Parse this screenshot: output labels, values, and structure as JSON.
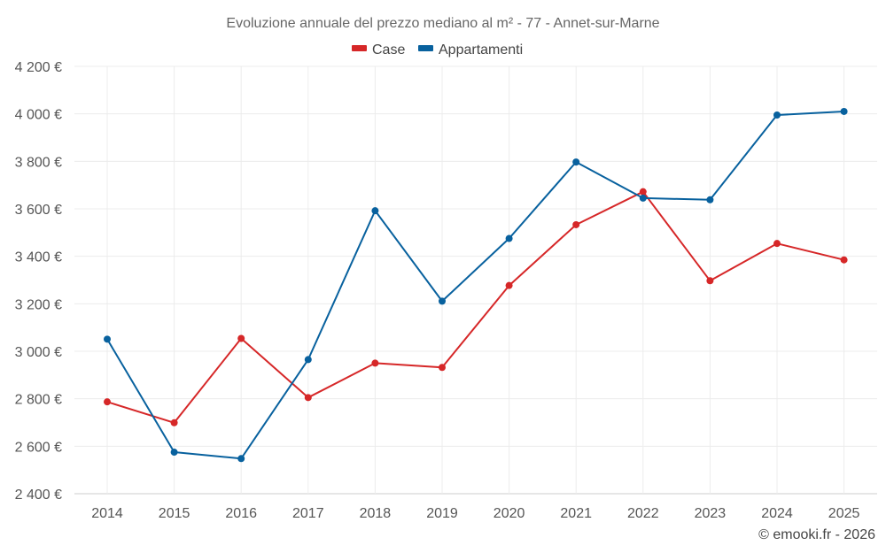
{
  "chart_data": {
    "type": "line",
    "title": "Evoluzione annuale del prezzo mediano al m² - 77 - Annet-sur-Marne",
    "categories": [
      "2014",
      "2015",
      "2016",
      "2017",
      "2018",
      "2019",
      "2020",
      "2021",
      "2022",
      "2023",
      "2024",
      "2025"
    ],
    "ylim": [
      2400,
      4200
    ],
    "y_ticks": [
      2400,
      2600,
      2800,
      3000,
      3200,
      3400,
      3600,
      3800,
      4000,
      4200
    ],
    "y_tick_labels": [
      "2 400 €",
      "2 600 €",
      "2 800 €",
      "3 000 €",
      "3 200 €",
      "3 400 €",
      "3 600 €",
      "3 800 €",
      "4 000 €",
      "4 200 €"
    ],
    "grid": true,
    "legend_position": "top-center",
    "series": [
      {
        "name": "Case",
        "color": "#d62728",
        "values": [
          2787,
          2699,
          3054,
          2805,
          2950,
          2932,
          3277,
          3533,
          3672,
          3297,
          3454,
          3385
        ]
      },
      {
        "name": "Appartamenti",
        "color": "#08619e",
        "values": [
          3051,
          2575,
          2548,
          2965,
          3592,
          3211,
          3475,
          3797,
          3645,
          3638,
          3995,
          4010
        ]
      }
    ]
  },
  "credit": "© emooki.fr - 2026"
}
